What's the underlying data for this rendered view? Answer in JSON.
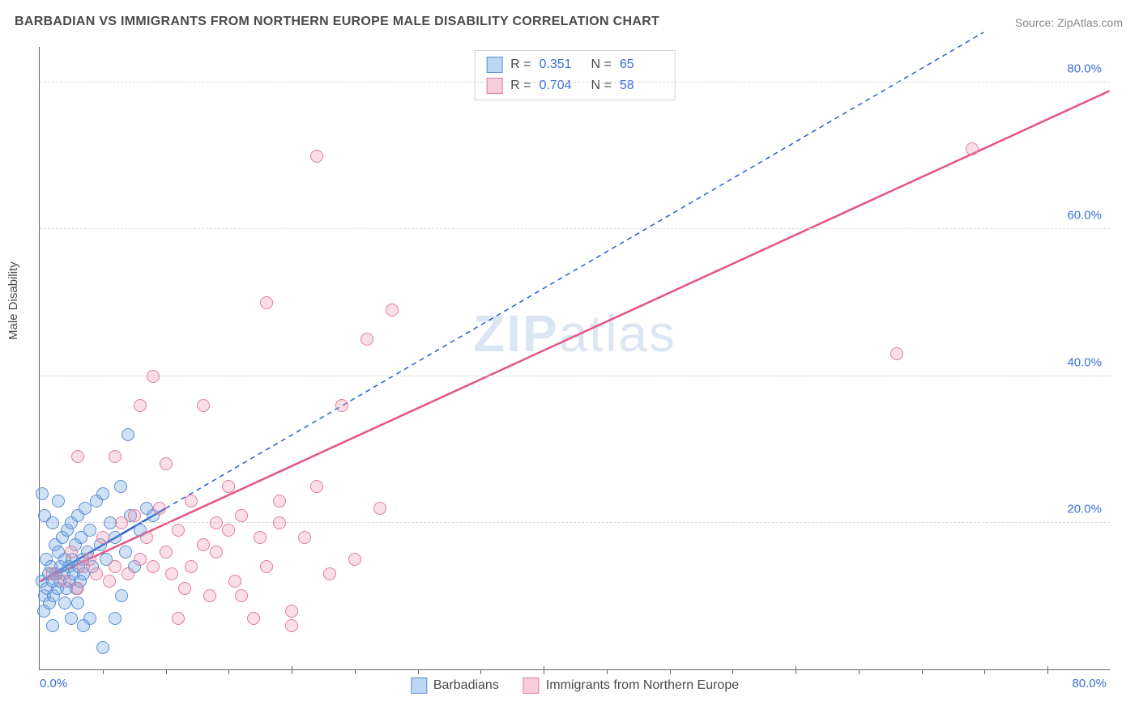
{
  "title": "BARBADIAN VS IMMIGRANTS FROM NORTHERN EUROPE MALE DISABILITY CORRELATION CHART",
  "source": {
    "label": "Source:",
    "value": "ZipAtlas.com"
  },
  "watermark": {
    "bold": "ZIP",
    "rest": "atlas"
  },
  "chart": {
    "type": "scatter",
    "ylabel": "Male Disability",
    "xlim": [
      0,
      85
    ],
    "ylim": [
      0,
      85
    ],
    "x_axis_max_label": "80.0%",
    "x_axis_min_label": "0.0%",
    "yticks": [
      {
        "v": 20,
        "label": "20.0%"
      },
      {
        "v": 40,
        "label": "40.0%"
      },
      {
        "v": 60,
        "label": "60.0%"
      },
      {
        "v": 80,
        "label": "80.0%"
      }
    ],
    "xticks_major": [
      20,
      40,
      60,
      80
    ],
    "xticks_minor": [
      5,
      10,
      15,
      25,
      30,
      35,
      45,
      50,
      55,
      65,
      70,
      75
    ],
    "background_color": "#ffffff",
    "grid_color": "#d8d8d8",
    "axis_color": "#666666",
    "tick_label_color": "#3b6fd6",
    "marker_radius": 8,
    "marker_stroke_width": 1.5,
    "series": [
      {
        "name": "Barbadians",
        "fill": "rgba(120,170,230,0.35)",
        "stroke": "#5a8fd0",
        "swatch_fill": "#bcd6f4",
        "swatch_stroke": "#5a8fd0",
        "R": "0.351",
        "N": "65",
        "trend": {
          "x1": 0,
          "y1": 12,
          "x2": 10,
          "y2": 22,
          "extend_x2": 75,
          "extend_y2": 87,
          "color": "#2a5fc9",
          "width": 2.5,
          "dash": "6,5"
        },
        "points": [
          [
            0.2,
            12
          ],
          [
            0.3,
            8
          ],
          [
            0.4,
            10
          ],
          [
            0.5,
            15
          ],
          [
            0.6,
            11
          ],
          [
            0.7,
            13
          ],
          [
            0.8,
            9
          ],
          [
            0.9,
            14
          ],
          [
            1.0,
            12
          ],
          [
            1.1,
            10
          ],
          [
            1.2,
            17
          ],
          [
            1.3,
            13
          ],
          [
            1.4,
            11
          ],
          [
            1.5,
            16
          ],
          [
            1.6,
            12
          ],
          [
            1.7,
            14
          ],
          [
            1.8,
            18
          ],
          [
            1.9,
            13
          ],
          [
            2.0,
            15
          ],
          [
            2.1,
            11
          ],
          [
            2.2,
            19
          ],
          [
            2.3,
            14
          ],
          [
            2.4,
            12
          ],
          [
            2.5,
            20
          ],
          [
            2.6,
            15
          ],
          [
            2.7,
            13
          ],
          [
            2.8,
            17
          ],
          [
            2.9,
            11
          ],
          [
            3.0,
            21
          ],
          [
            3.1,
            14
          ],
          [
            3.2,
            12
          ],
          [
            3.3,
            18
          ],
          [
            3.4,
            15
          ],
          [
            3.5,
            13
          ],
          [
            3.6,
            22
          ],
          [
            3.8,
            16
          ],
          [
            4.0,
            19
          ],
          [
            4.2,
            14
          ],
          [
            4.5,
            23
          ],
          [
            4.8,
            17
          ],
          [
            5.0,
            24
          ],
          [
            5.3,
            15
          ],
          [
            5.6,
            20
          ],
          [
            6.0,
            18
          ],
          [
            6.4,
            25
          ],
          [
            6.8,
            16
          ],
          [
            7.2,
            21
          ],
          [
            7.5,
            14
          ],
          [
            8.0,
            19
          ],
          [
            8.5,
            22
          ],
          [
            0.2,
            24
          ],
          [
            0.4,
            21
          ],
          [
            1.0,
            20
          ],
          [
            1.5,
            23
          ],
          [
            2.0,
            9
          ],
          [
            2.5,
            7
          ],
          [
            3.0,
            9
          ],
          [
            1.0,
            6
          ],
          [
            4.0,
            7
          ],
          [
            5.0,
            3
          ],
          [
            3.5,
            6
          ],
          [
            6.0,
            7
          ],
          [
            6.5,
            10
          ],
          [
            7.0,
            32
          ],
          [
            9.0,
            21
          ]
        ]
      },
      {
        "name": "Immigrants from Northern Europe",
        "fill": "rgba(240,150,180,0.30)",
        "stroke": "#e07d9d",
        "swatch_fill": "#f6cdd9",
        "swatch_stroke": "#e07d9d",
        "R": "0.704",
        "N": "58",
        "trend": {
          "x1": 0,
          "y1": 12,
          "x2": 85,
          "y2": 79,
          "color": "#e55384",
          "width": 2.5,
          "dash": ""
        },
        "points": [
          [
            1,
            13
          ],
          [
            2,
            12
          ],
          [
            2.5,
            16
          ],
          [
            3,
            11
          ],
          [
            3.5,
            14
          ],
          [
            4,
            15
          ],
          [
            4.5,
            13
          ],
          [
            5,
            18
          ],
          [
            5.5,
            12
          ],
          [
            6,
            14
          ],
          [
            6.5,
            20
          ],
          [
            7,
            13
          ],
          [
            7.5,
            21
          ],
          [
            8,
            15
          ],
          [
            8.5,
            18
          ],
          [
            9,
            14
          ],
          [
            9.5,
            22
          ],
          [
            10,
            16
          ],
          [
            10.5,
            13
          ],
          [
            11,
            19
          ],
          [
            11.5,
            11
          ],
          [
            12,
            23
          ],
          [
            13,
            17
          ],
          [
            13.5,
            10
          ],
          [
            14,
            20
          ],
          [
            15,
            25
          ],
          [
            15.5,
            12
          ],
          [
            16,
            21
          ],
          [
            17,
            7
          ],
          [
            17.5,
            18
          ],
          [
            18,
            14
          ],
          [
            19,
            23
          ],
          [
            20,
            6
          ],
          [
            21,
            18
          ],
          [
            22,
            25
          ],
          [
            23,
            13
          ],
          [
            24,
            36
          ],
          [
            25,
            15
          ],
          [
            26,
            45
          ],
          [
            27,
            22
          ],
          [
            6,
            29
          ],
          [
            8,
            36
          ],
          [
            9,
            40
          ],
          [
            13,
            36
          ],
          [
            18,
            50
          ],
          [
            22,
            70
          ],
          [
            3,
            29
          ],
          [
            74,
            71
          ],
          [
            68,
            43
          ],
          [
            20,
            8
          ],
          [
            11,
            7
          ],
          [
            12,
            14
          ],
          [
            14,
            16
          ],
          [
            16,
            10
          ],
          [
            10,
            28
          ],
          [
            15,
            19
          ],
          [
            19,
            20
          ],
          [
            28,
            49
          ]
        ]
      }
    ],
    "legend_top": {
      "R_label": "R  =",
      "N_label": "N  ="
    },
    "legend_bottom": [
      {
        "series": 0
      },
      {
        "series": 1
      }
    ]
  }
}
